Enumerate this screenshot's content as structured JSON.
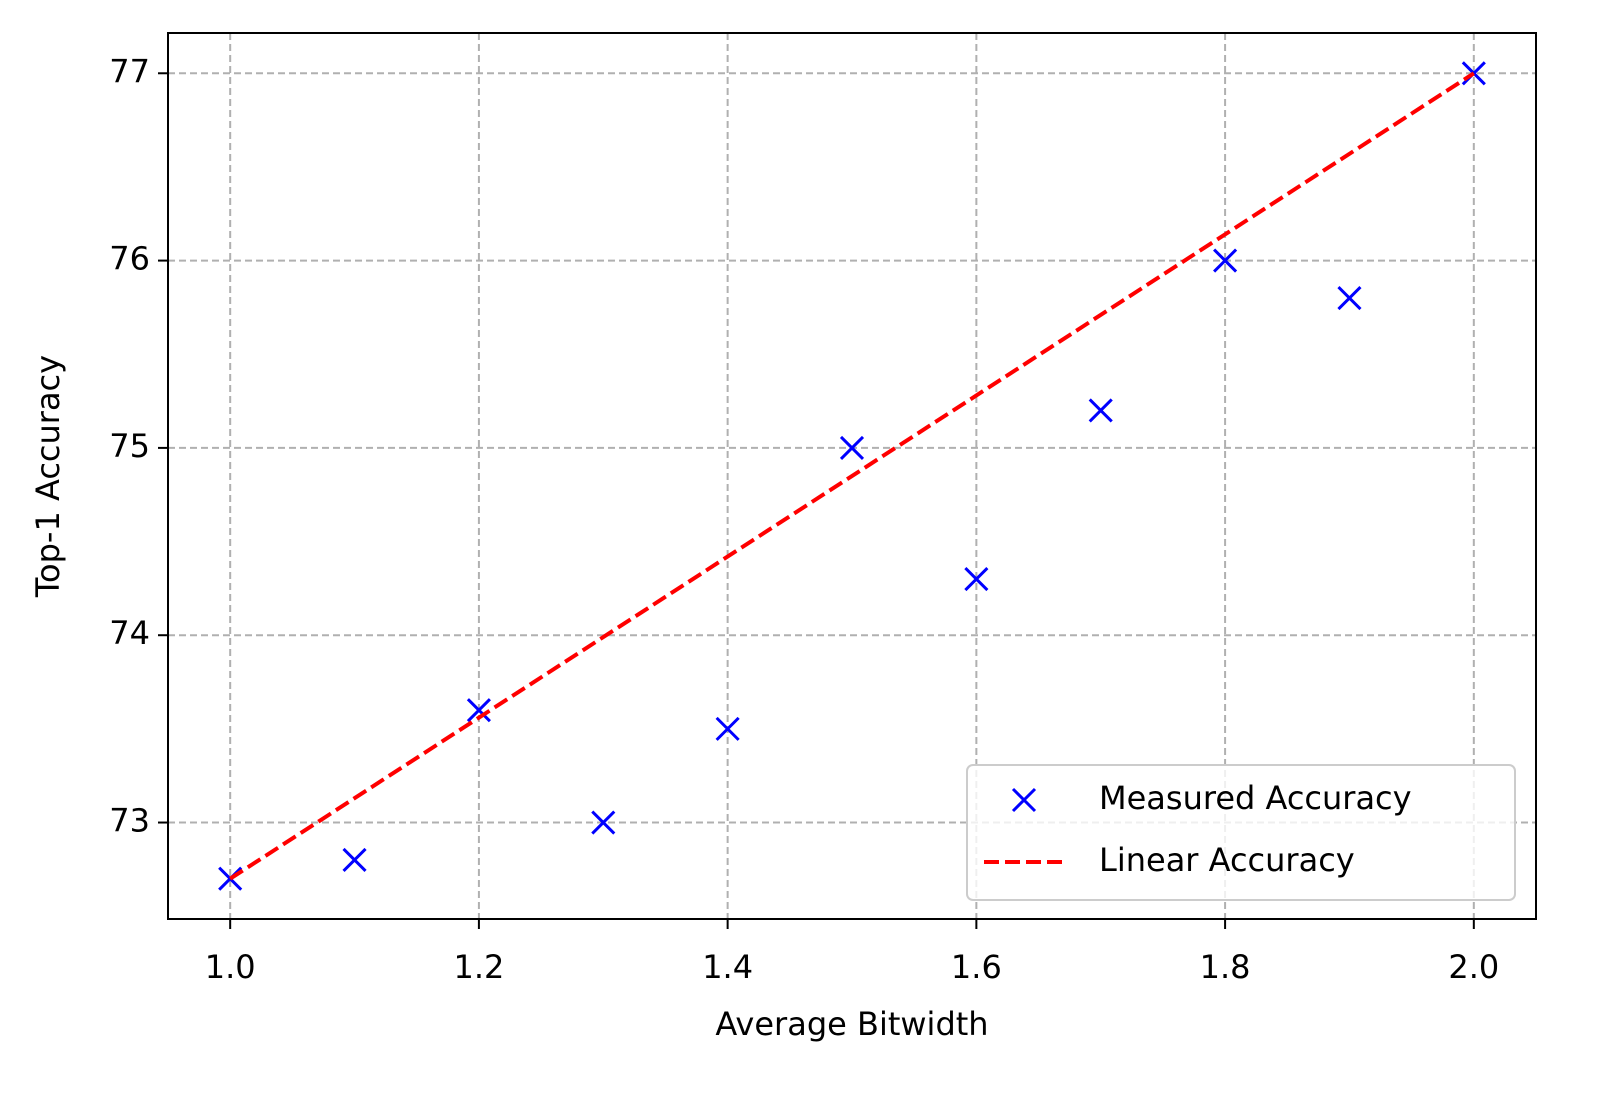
{
  "chart_data": {
    "type": "scatter",
    "xlabel": "Average Bitwidth",
    "ylabel": "Top-1 Accuracy",
    "xlim": [
      0.95,
      2.05
    ],
    "ylim": [
      72.485,
      77.215
    ],
    "xticks": [
      {
        "value": 1.0,
        "label": "1.0"
      },
      {
        "value": 1.2,
        "label": "1.2"
      },
      {
        "value": 1.4,
        "label": "1.4"
      },
      {
        "value": 1.6,
        "label": "1.6"
      },
      {
        "value": 1.8,
        "label": "1.8"
      },
      {
        "value": 2.0,
        "label": "2.0"
      }
    ],
    "yticks": [
      73,
      74,
      75,
      76,
      77
    ],
    "grid": true,
    "legend": "lower right",
    "series": [
      {
        "name": "Measured Accuracy",
        "color": "#0000ff",
        "marker": "x",
        "x": [
          1.0,
          1.1,
          1.2,
          1.3,
          1.4,
          1.5,
          1.6,
          1.7,
          1.8,
          1.9,
          2.0
        ],
        "values": [
          72.7,
          72.8,
          73.6,
          73.0,
          73.5,
          75.0,
          74.3,
          75.2,
          76.0,
          75.8,
          77.0
        ]
      },
      {
        "name": "Linear Accuracy",
        "color": "#ff0000",
        "linestyle": "dashed",
        "x": [
          1.0,
          2.0
        ],
        "values": [
          72.7,
          77.0
        ]
      }
    ]
  }
}
